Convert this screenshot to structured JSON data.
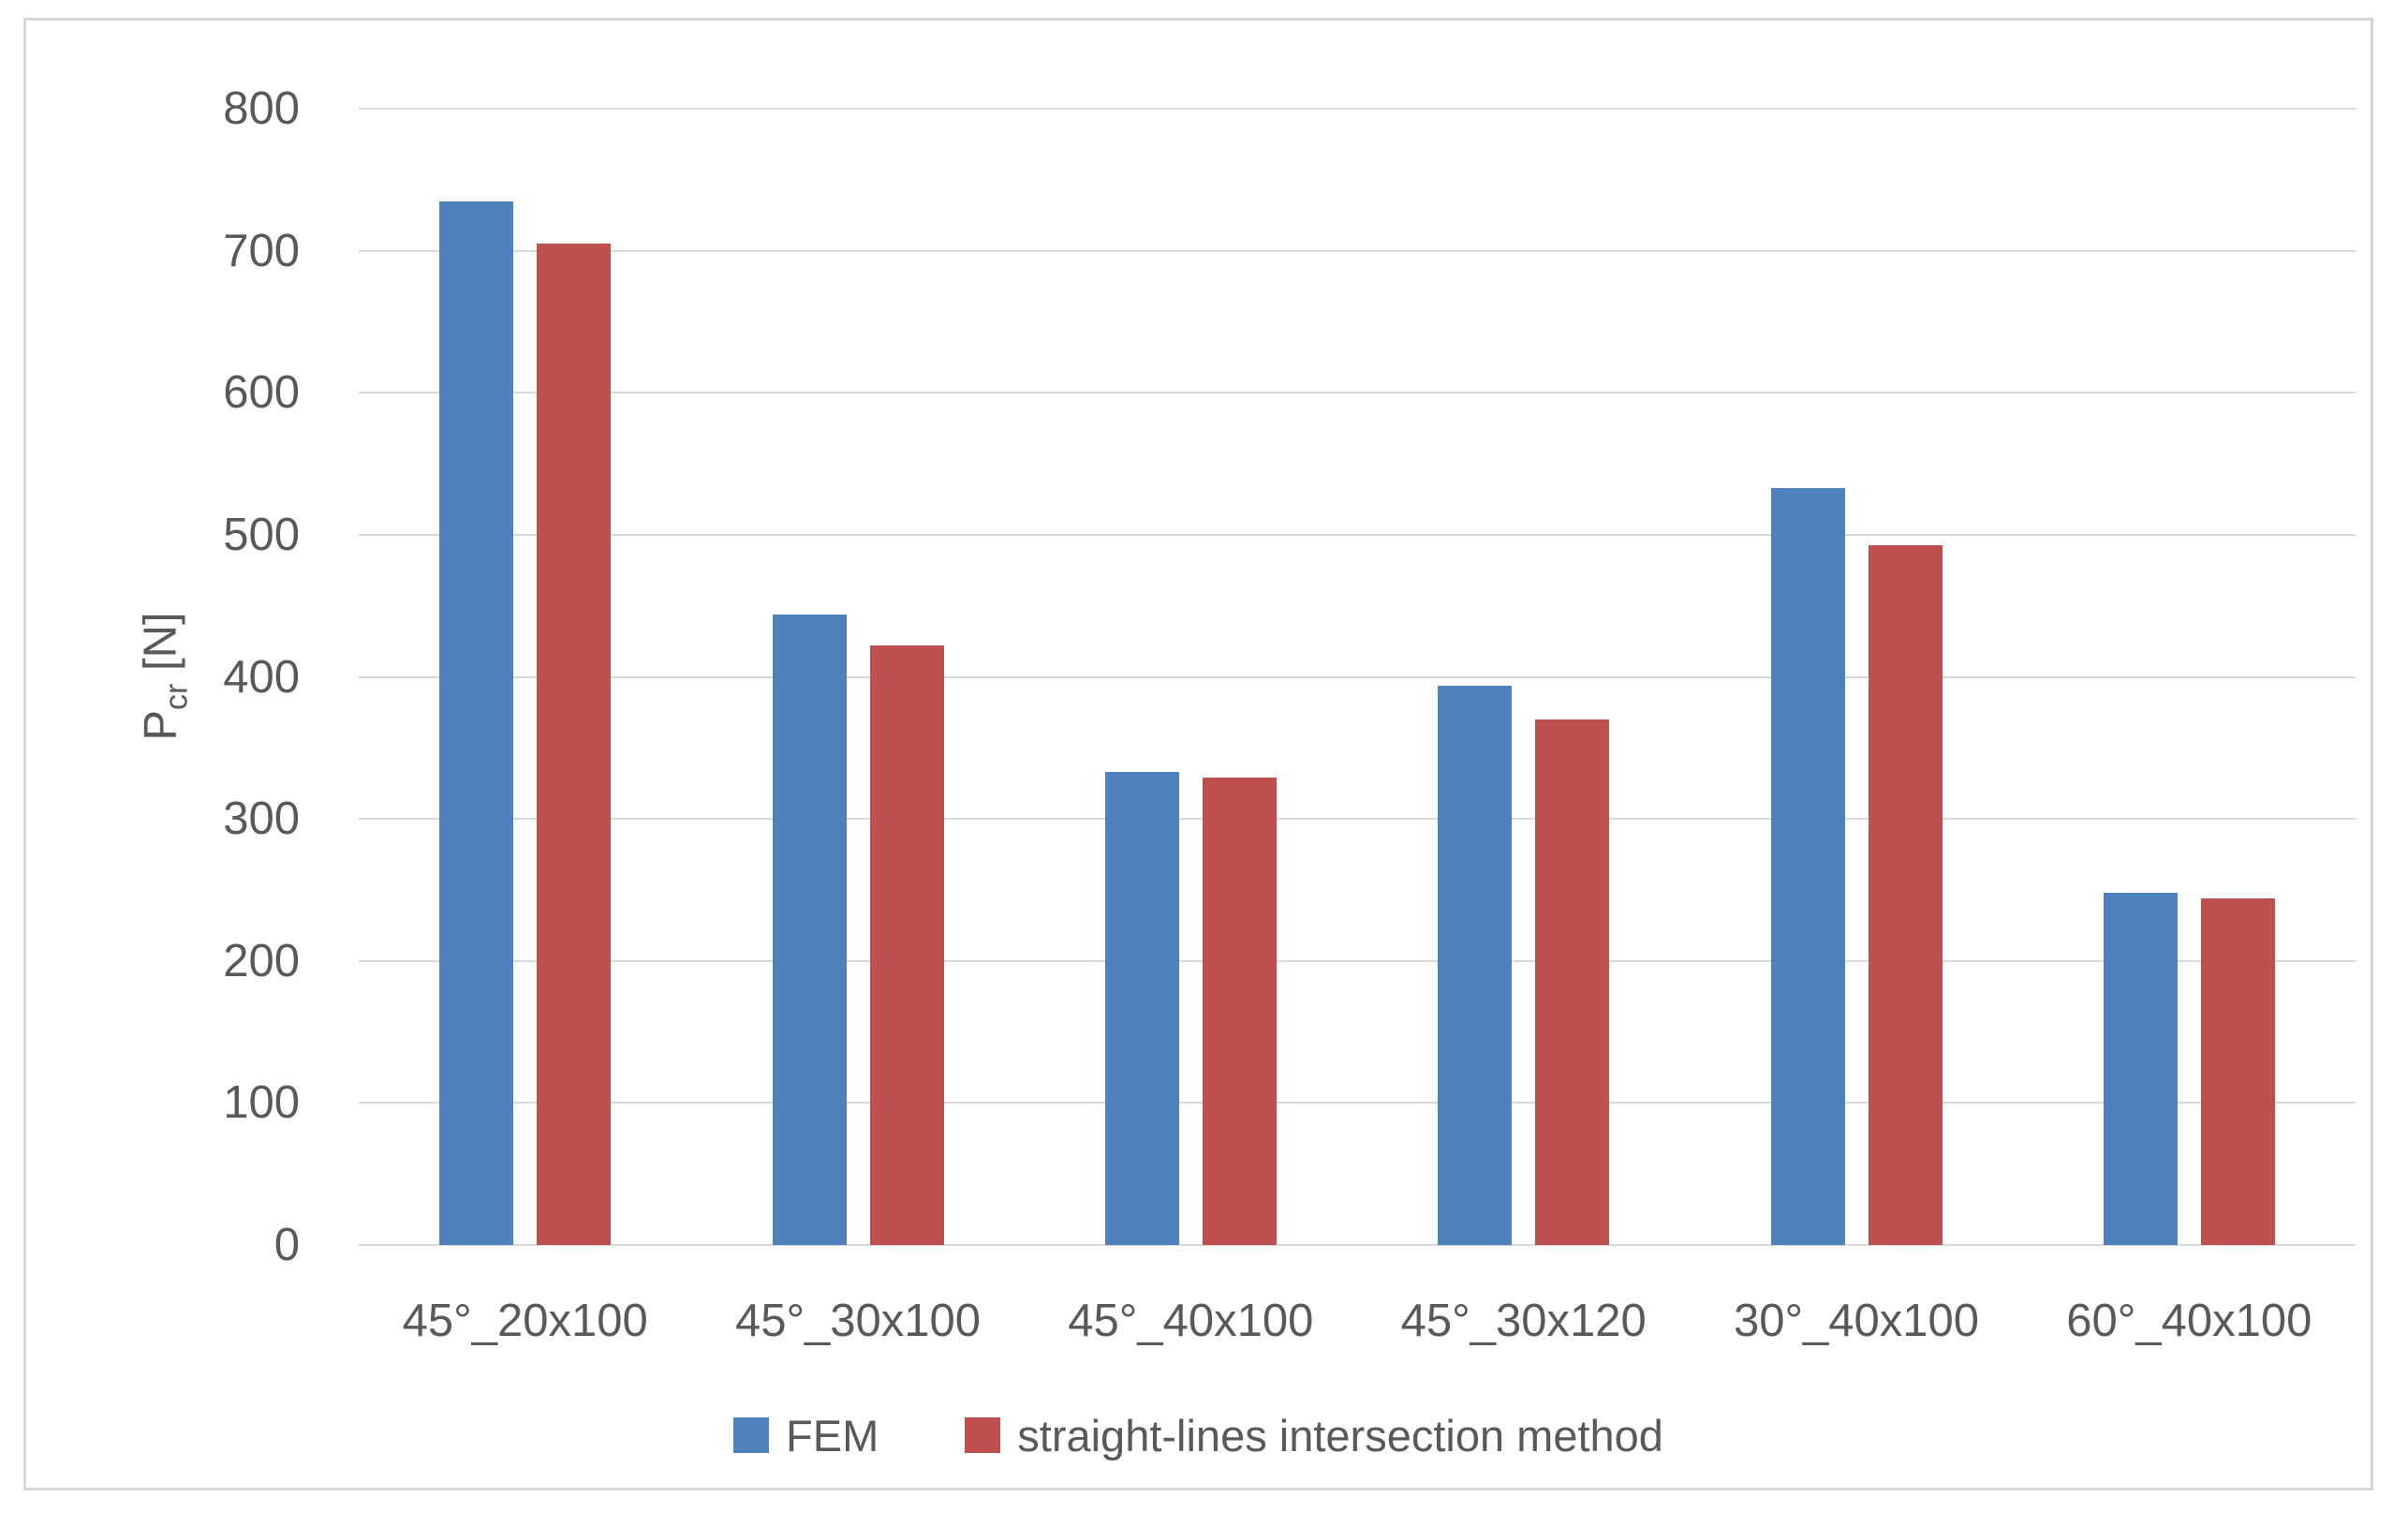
{
  "chart_data": {
    "type": "bar",
    "categories": [
      "45°_20x100",
      "45°_30x100",
      "45°_40x100",
      "45°_30x120",
      "30°_40x100",
      "60°_40x100"
    ],
    "series": [
      {
        "name": "FEM",
        "color": "#4f81bd",
        "values": [
          735,
          444,
          333,
          394,
          533,
          248
        ]
      },
      {
        "name": "straight-lines intersection method",
        "color": "#c0504d",
        "values": [
          705,
          422,
          329,
          370,
          493,
          244
        ]
      }
    ],
    "title": "",
    "xlabel": "",
    "ylabel": "Pcr [N]",
    "ylabel_parts": {
      "main": "P",
      "sub": "cr",
      "unit": " [N]"
    },
    "ylim": [
      0,
      800
    ],
    "yticks": [
      800,
      700,
      600,
      500,
      400,
      300,
      200,
      100,
      0
    ],
    "grid": true,
    "legend_position": "bottom-center"
  },
  "style": {
    "bar_colors": {
      "fem": "#4f81bd",
      "straight_lines": "#c0504d"
    },
    "gridline_color": "#d9d9d9",
    "frame_border_color": "#d7d7d7",
    "text_color": "#595959",
    "background": "#ffffff"
  }
}
